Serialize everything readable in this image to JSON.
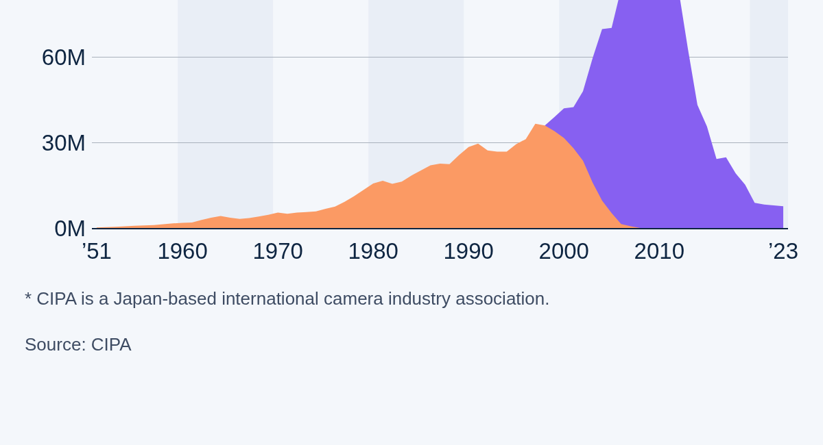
{
  "chart_data": {
    "type": "area",
    "stacked": true,
    "grid": "y",
    "xlim": [
      1950.5,
      2023.5
    ],
    "xticks": [
      {
        "value": 1951,
        "label": "’51"
      },
      1960,
      1970,
      1980,
      1990,
      2000,
      2010,
      {
        "value": 2023,
        "label": "’23"
      }
    ],
    "ylim": [
      0,
      80
    ],
    "yticks": [
      {
        "value": 0,
        "label": "0M"
      },
      {
        "value": 30,
        "label": "30M"
      },
      {
        "value": 60,
        "label": "60M"
      }
    ],
    "x": [
      1951,
      1952,
      1953,
      1954,
      1955,
      1956,
      1957,
      1958,
      1959,
      1960,
      1961,
      1962,
      1963,
      1964,
      1965,
      1966,
      1967,
      1968,
      1969,
      1970,
      1971,
      1972,
      1973,
      1974,
      1975,
      1976,
      1977,
      1978,
      1979,
      1980,
      1981,
      1982,
      1983,
      1984,
      1985,
      1986,
      1987,
      1988,
      1989,
      1990,
      1991,
      1992,
      1993,
      1994,
      1995,
      1996,
      1997,
      1998,
      1999,
      2000,
      2001,
      2002,
      2003,
      2004,
      2005,
      2006,
      2007,
      2008,
      2009,
      2010,
      2011,
      2012,
      2013,
      2014,
      2015,
      2016,
      2017,
      2018,
      2019,
      2020,
      2021,
      2022,
      2023
    ],
    "series": [
      {
        "color": "#fb9a64",
        "values": [
          0.2,
          0.3,
          0.4,
          0.6,
          0.8,
          0.9,
          1.0,
          1.3,
          1.6,
          1.8,
          1.9,
          2.8,
          3.6,
          4.2,
          3.6,
          3.2,
          3.5,
          4.0,
          4.6,
          5.4,
          5.0,
          5.4,
          5.6,
          5.8,
          6.7,
          7.5,
          9.2,
          11.2,
          13.4,
          15.6,
          16.6,
          15.5,
          16.3,
          18.4,
          20.2,
          22.0,
          22.6,
          22.4,
          25.6,
          28.4,
          29.6,
          27.2,
          26.8,
          26.8,
          29.4,
          31.2,
          36.6,
          36.0,
          34.0,
          31.6,
          28.0,
          23.6,
          16.0,
          9.6,
          5.2,
          1.4,
          0.6,
          0,
          null,
          null,
          null,
          null,
          null,
          null,
          null,
          null,
          null,
          null,
          null,
          null,
          null,
          null,
          null
        ]
      },
      {
        "color": "#8760f1",
        "values": [
          null,
          null,
          null,
          null,
          null,
          null,
          null,
          null,
          null,
          null,
          null,
          null,
          null,
          null,
          null,
          null,
          null,
          null,
          null,
          null,
          null,
          null,
          null,
          null,
          null,
          null,
          null,
          null,
          null,
          null,
          null,
          null,
          null,
          null,
          null,
          null,
          null,
          null,
          null,
          null,
          null,
          null,
          null,
          null,
          null,
          null,
          null,
          0,
          4.9,
          10.4,
          14.4,
          24.4,
          43.5,
          60.2,
          65.0,
          null,
          null,
          null,
          null,
          null,
          null,
          null,
          62.9,
          43.2,
          35.6,
          24.2,
          24.8,
          19.2,
          15.2,
          8.8,
          8.2,
          7.9,
          7.6
        ]
      }
    ],
    "bands": [
      {
        "axis": "x",
        "from": 1959.5,
        "to": 1969.5,
        "color": "#e9eef6"
      },
      {
        "axis": "x",
        "from": 1979.5,
        "to": 1989.5,
        "color": "#e9eef6"
      },
      {
        "axis": "x",
        "from": 1999.5,
        "to": 2009.5,
        "color": "#e9eef6"
      },
      {
        "axis": "x",
        "from": 2019.5,
        "to": 2023.5,
        "color": "#e9eef6"
      }
    ],
    "annotations": [
      "* CIPA is a Japan-based international camera industry association.",
      "Source: CIPA"
    ]
  }
}
